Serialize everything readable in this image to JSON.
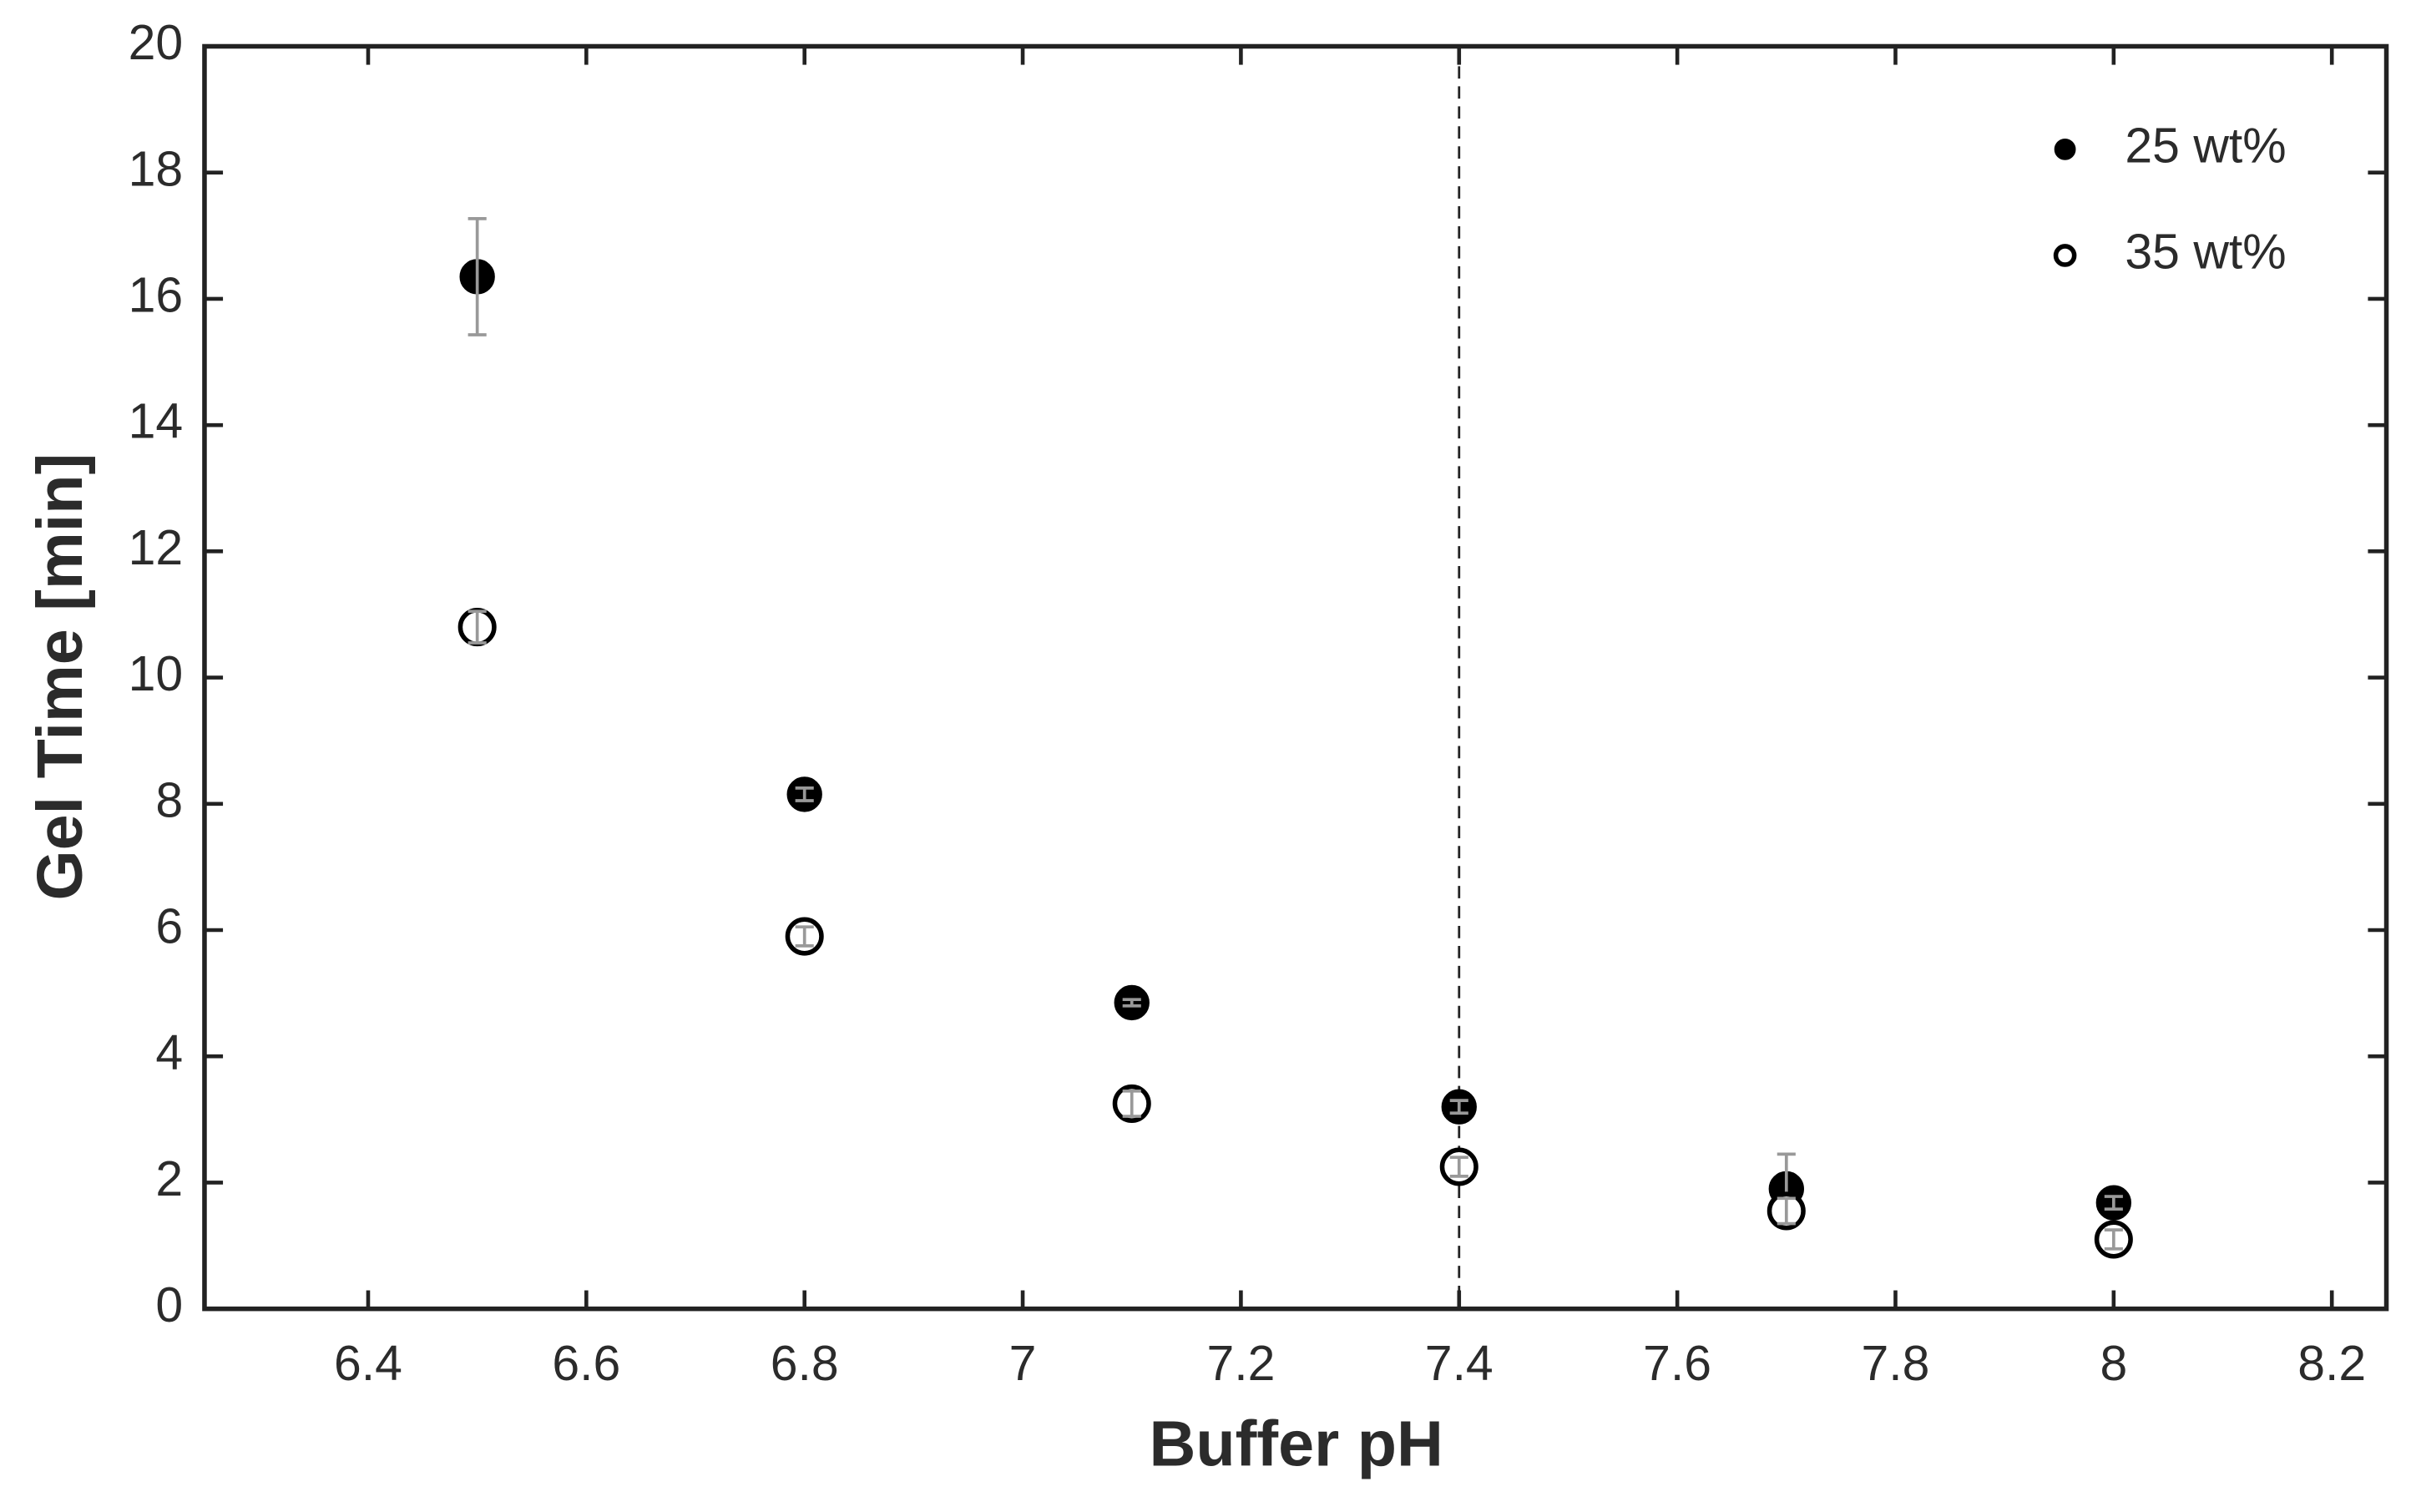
{
  "chart_data": {
    "type": "scatter",
    "xlabel": "Buffer pH",
    "ylabel": "Gel Time [min]",
    "xlim": [
      6.25,
      8.25
    ],
    "ylim": [
      0,
      20
    ],
    "xticks": [
      6.4,
      6.6,
      6.8,
      7,
      7.2,
      7.4,
      7.6,
      7.8,
      8,
      8.2
    ],
    "yticks": [
      0,
      2,
      4,
      6,
      8,
      10,
      12,
      14,
      16,
      18,
      20
    ],
    "reference_line_x": 7.4,
    "legend": "upper right",
    "series": [
      {
        "name": "25 wt%",
        "color": "#000000",
        "marker": "filled",
        "x": [
          6.5,
          6.8,
          7.1,
          7.4,
          7.7,
          8.0
        ],
        "values": [
          16.35,
          8.15,
          4.85,
          3.2,
          1.9,
          1.68
        ],
        "errors": [
          0.92,
          0.1,
          0.05,
          0.1,
          0.55,
          0.1
        ]
      },
      {
        "name": "35 wt%",
        "color": "#000000",
        "marker": "open",
        "x": [
          6.5,
          6.8,
          7.1,
          7.4,
          7.7,
          8.0
        ],
        "values": [
          10.8,
          5.9,
          3.25,
          2.25,
          1.55,
          1.1
        ],
        "errors": [
          0.25,
          0.15,
          0.2,
          0.15,
          0.2,
          0.15
        ]
      }
    ]
  }
}
